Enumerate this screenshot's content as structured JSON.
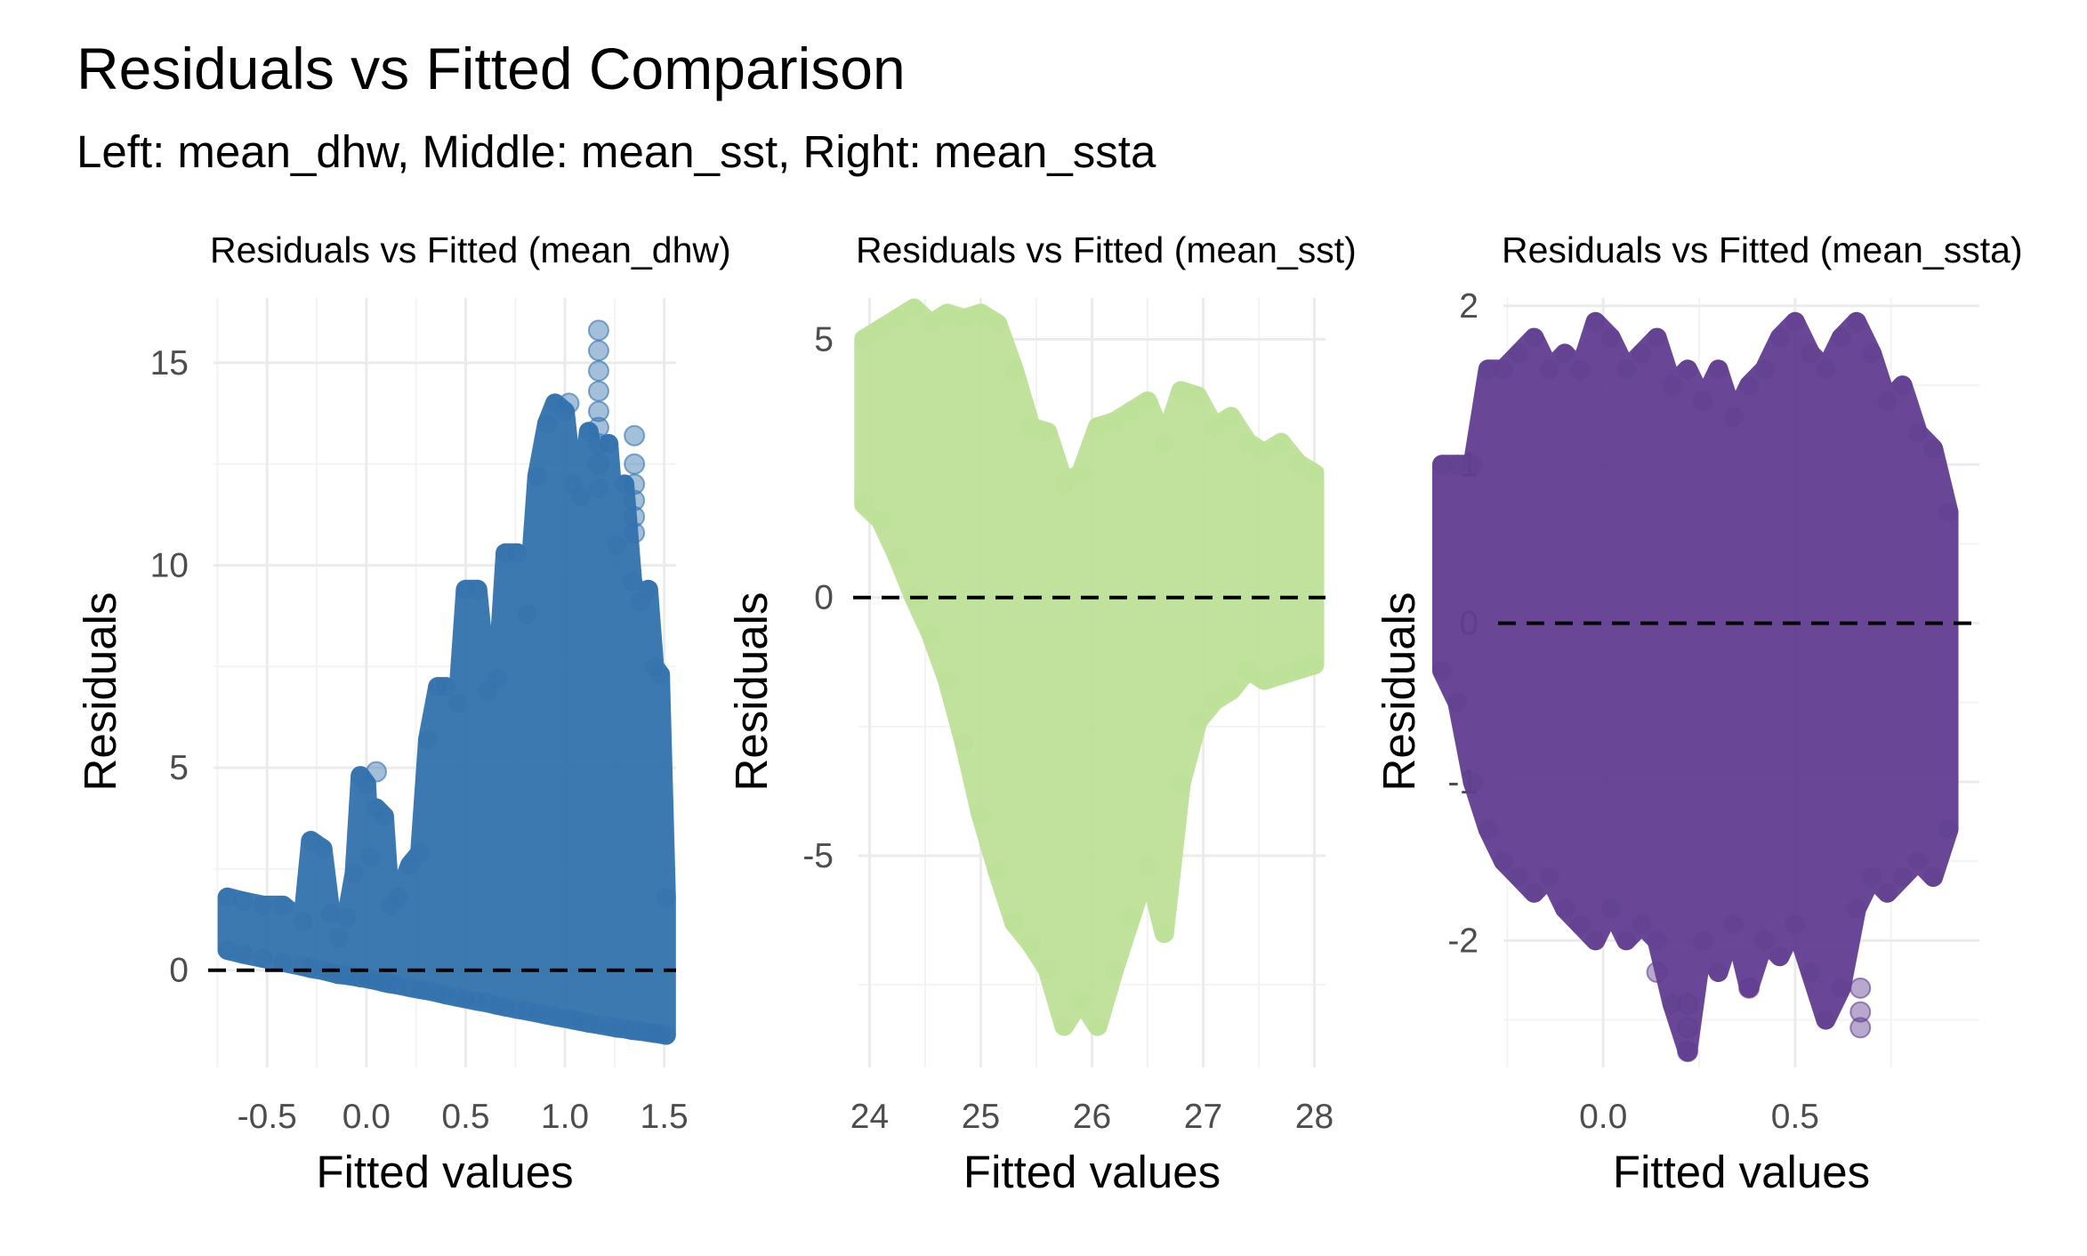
{
  "title": "Residuals vs Fitted Comparison",
  "subtitle": "Left: mean_dhw, Middle: mean_sst, Right: mean_ssta",
  "chart_data": [
    {
      "type": "scatter",
      "title": "Residuals vs Fitted (mean_dhw)",
      "xlabel": "Fitted values",
      "ylabel": "Residuals",
      "xlim": [
        -0.77,
        1.56
      ],
      "ylim": [
        -2.4,
        16.6
      ],
      "x_ticks": [
        -0.5,
        0.0,
        0.5,
        1.0,
        1.5
      ],
      "x_tick_labels": [
        "-0.5",
        "0.0",
        "0.5",
        "1.0",
        "1.5"
      ],
      "y_ticks": [
        0,
        5,
        10,
        15
      ],
      "y_tick_labels": [
        "0",
        "5",
        "10",
        "15"
      ],
      "color": "#3372ad",
      "reference_line": 0,
      "grid": true,
      "band": {
        "x": [
          -0.7,
          -0.62,
          -0.52,
          -0.42,
          -0.32,
          -0.28,
          -0.22,
          -0.18,
          -0.14,
          -0.1,
          -0.06,
          -0.03,
          0.0,
          0.02,
          0.05,
          0.09,
          0.12,
          0.16,
          0.22,
          0.27,
          0.31,
          0.36,
          0.4,
          0.46,
          0.5,
          0.56,
          0.61,
          0.66,
          0.7,
          0.76,
          0.81,
          0.86,
          0.91,
          0.95,
          1.0,
          1.04,
          1.08,
          1.12,
          1.17,
          1.22,
          1.26,
          1.3,
          1.34,
          1.38,
          1.42,
          1.45,
          1.48,
          1.51
        ],
        "upper": [
          1.8,
          1.7,
          1.6,
          1.6,
          1.2,
          3.2,
          3.0,
          1.4,
          0.8,
          1.3,
          2.4,
          4.8,
          4.6,
          2.8,
          4.0,
          3.8,
          1.6,
          1.8,
          2.6,
          2.9,
          5.7,
          7.0,
          7.0,
          6.6,
          9.4,
          9.4,
          6.9,
          7.2,
          10.3,
          10.3,
          8.8,
          12.2,
          13.5,
          14.0,
          13.8,
          12.0,
          11.7,
          13.3,
          11.9,
          13.0,
          10.5,
          12.0,
          9.6,
          9.1,
          9.4,
          7.5,
          7.3,
          1.8
        ],
        "lower": [
          0.5,
          0.4,
          0.3,
          0.2,
          0.1,
          0.05,
          0.0,
          -0.05,
          -0.1,
          -0.12,
          -0.15,
          -0.18,
          -0.2,
          -0.22,
          -0.25,
          -0.3,
          -0.33,
          -0.36,
          -0.42,
          -0.47,
          -0.5,
          -0.55,
          -0.6,
          -0.66,
          -0.7,
          -0.76,
          -0.8,
          -0.86,
          -0.9,
          -0.96,
          -1.0,
          -1.05,
          -1.1,
          -1.14,
          -1.18,
          -1.22,
          -1.26,
          -1.3,
          -1.34,
          -1.38,
          -1.42,
          -1.44,
          -1.48,
          -1.5,
          -1.53,
          -1.55,
          -1.57,
          -1.6
        ]
      },
      "outliers": {
        "x": [
          1.17,
          1.17,
          1.17,
          1.17,
          1.17,
          1.17,
          1.17,
          1.17,
          1.35,
          1.35,
          1.35,
          1.35,
          1.35,
          1.35,
          1.02,
          0.05
        ],
        "y": [
          15.8,
          15.3,
          14.8,
          14.3,
          13.8,
          13.4,
          13.0,
          12.5,
          13.2,
          12.5,
          12.0,
          11.6,
          11.2,
          10.8,
          14.0,
          4.9
        ]
      }
    },
    {
      "type": "scatter",
      "title": "Residuals vs Fitted (mean_sst)",
      "xlabel": "Fitted values",
      "ylabel": "Residuals",
      "xlim": [
        23.9,
        28.1
      ],
      "ylim": [
        -9.1,
        5.8
      ],
      "x_ticks": [
        24,
        25,
        26,
        27,
        28
      ],
      "x_tick_labels": [
        "24",
        "25",
        "26",
        "27",
        "28"
      ],
      "y_ticks": [
        -5,
        0,
        5
      ],
      "y_tick_labels": [
        "-5",
        "0",
        "5"
      ],
      "color": "#bde197",
      "reference_line": 0,
      "grid": true,
      "band": {
        "x": [
          23.95,
          24.1,
          24.25,
          24.4,
          24.55,
          24.7,
          24.85,
          25.0,
          25.15,
          25.3,
          25.45,
          25.6,
          25.75,
          25.9,
          26.05,
          26.2,
          26.35,
          26.5,
          26.65,
          26.8,
          26.95,
          27.1,
          27.25,
          27.4,
          27.55,
          27.7,
          27.85,
          28.0
        ],
        "upper": [
          5.0,
          5.2,
          5.4,
          5.6,
          5.3,
          5.5,
          5.4,
          5.5,
          5.3,
          4.4,
          3.3,
          3.2,
          2.2,
          2.4,
          3.3,
          3.4,
          3.6,
          3.8,
          3.0,
          4.0,
          3.9,
          3.3,
          3.5,
          3.0,
          2.8,
          3.0,
          2.6,
          2.4
        ],
        "lower": [
          1.8,
          1.5,
          0.8,
          0.0,
          -0.7,
          -1.6,
          -2.8,
          -4.2,
          -5.3,
          -6.3,
          -6.7,
          -7.2,
          -8.3,
          -7.8,
          -8.3,
          -7.2,
          -6.2,
          -5.2,
          -6.5,
          -3.6,
          -2.4,
          -2.0,
          -1.8,
          -1.4,
          -1.6,
          -1.5,
          -1.4,
          -1.3
        ]
      }
    },
    {
      "type": "scatter",
      "title": "Residuals vs Fitted (mean_ssta)",
      "xlabel": "Fitted values",
      "ylabel": "Residuals",
      "xlim": [
        -0.26,
        0.98
      ],
      "ylim": [
        -2.8,
        2.05
      ],
      "x_ticks": [
        0.0,
        0.5
      ],
      "x_tick_labels": [
        "0.0",
        "0.5"
      ],
      "y_ticks": [
        -2,
        -1,
        0,
        1,
        2
      ],
      "y_tick_labels": [
        "-2",
        "-1",
        "0",
        "1",
        "2"
      ],
      "color": "#613e91",
      "reference_line": 0,
      "grid": true,
      "band": {
        "x": [
          -0.42,
          -0.38,
          -0.34,
          -0.3,
          -0.26,
          -0.22,
          -0.18,
          -0.14,
          -0.1,
          -0.06,
          -0.02,
          0.02,
          0.06,
          0.1,
          0.14,
          0.18,
          0.22,
          0.26,
          0.3,
          0.34,
          0.38,
          0.42,
          0.46,
          0.5,
          0.54,
          0.58,
          0.62,
          0.66,
          0.7,
          0.74,
          0.78,
          0.82,
          0.86,
          0.9
        ],
        "upper": [
          1.0,
          1.0,
          1.0,
          1.6,
          1.6,
          1.7,
          1.8,
          1.6,
          1.7,
          1.6,
          1.9,
          1.8,
          1.6,
          1.7,
          1.8,
          1.5,
          1.6,
          1.4,
          1.6,
          1.3,
          1.5,
          1.6,
          1.8,
          1.9,
          1.7,
          1.6,
          1.8,
          1.9,
          1.7,
          1.4,
          1.5,
          1.2,
          1.1,
          0.7
        ],
        "lower": [
          -0.3,
          -0.5,
          -1.0,
          -1.3,
          -1.5,
          -1.6,
          -1.7,
          -1.6,
          -1.8,
          -1.9,
          -2.0,
          -1.8,
          -2.0,
          -1.9,
          -2.0,
          -2.4,
          -2.7,
          -2.0,
          -2.2,
          -1.9,
          -2.3,
          -2.0,
          -2.1,
          -1.9,
          -2.2,
          -2.5,
          -2.3,
          -1.8,
          -1.6,
          -1.7,
          -1.6,
          -1.5,
          -1.6,
          -1.3
        ]
      },
      "outliers": {
        "x": [
          0.22,
          0.22,
          0.22,
          0.67,
          0.67,
          0.67,
          0.14,
          0.38
        ],
        "y": [
          -2.4,
          -2.55,
          -2.7,
          -2.3,
          -2.45,
          -2.55,
          -2.2,
          -2.3
        ]
      }
    }
  ]
}
